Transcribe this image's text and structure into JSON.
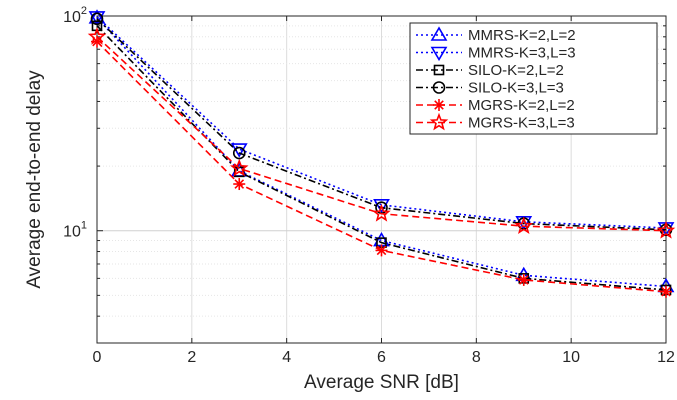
{
  "chart_data": {
    "type": "line",
    "title": "",
    "xlabel": "Average SNR [dB]",
    "ylabel": "Average end-to-end delay",
    "xlim": [
      0,
      12
    ],
    "ylim": [
      3,
      100
    ],
    "yscale": "log",
    "grid": true,
    "legend_position": "top-right",
    "x": [
      0,
      3,
      6,
      9,
      12
    ],
    "xticks": [
      "0",
      "2",
      "4",
      "6",
      "8",
      "10",
      "12"
    ],
    "yticks": [
      {
        "base": "10",
        "exp": "1"
      },
      {
        "base": "10",
        "exp": "2"
      }
    ],
    "series": [
      {
        "name": "MMRS-K=2,L=2",
        "color": "#0000ff",
        "line": "dotted",
        "marker": "triangle-up",
        "values": [
          98,
          19,
          9.0,
          6.2,
          5.5
        ]
      },
      {
        "name": "MMRS-K=3,L=3",
        "color": "#0000ff",
        "line": "dotted",
        "marker": "triangle-down",
        "values": [
          99,
          24,
          13.2,
          11.0,
          10.3
        ]
      },
      {
        "name": "SILO-K=2,L=2",
        "color": "#000000",
        "line": "dashdot",
        "marker": "square",
        "values": [
          90,
          18.8,
          8.8,
          6.0,
          5.3
        ]
      },
      {
        "name": "SILO-K=3,L=3",
        "color": "#000000",
        "line": "dashdot",
        "marker": "circle",
        "values": [
          97,
          23,
          12.8,
          10.8,
          10.1
        ]
      },
      {
        "name": "MGRS-K=2,L=2",
        "color": "#ff0000",
        "line": "dashed",
        "marker": "asterisk",
        "values": [
          76,
          16.5,
          8.1,
          5.9,
          5.2
        ]
      },
      {
        "name": "MGRS-K=3,L=3",
        "color": "#ff0000",
        "line": "dashed",
        "marker": "star",
        "values": [
          80,
          19.5,
          12.0,
          10.5,
          10.0
        ]
      }
    ]
  }
}
